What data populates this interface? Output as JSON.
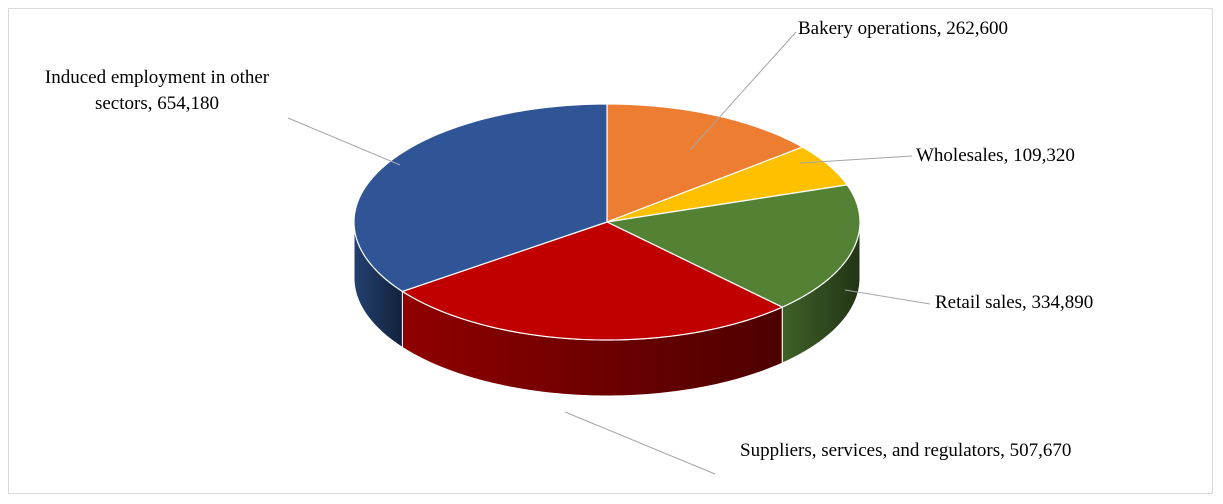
{
  "chart_data": {
    "type": "pie3d",
    "labels": [
      "Bakery operations, 262,600",
      "Wholesales, 109,320",
      "Retail sales, 334,890",
      "Suppliers, services, and regulators, 507,670",
      "Induced employment in other sectors, 654,180"
    ],
    "values": [
      262600,
      109320,
      334890,
      507670,
      654180
    ],
    "colors": [
      "#ED7D31",
      "#FFC000",
      "#548235",
      "#C00000",
      "#2F5597"
    ]
  }
}
